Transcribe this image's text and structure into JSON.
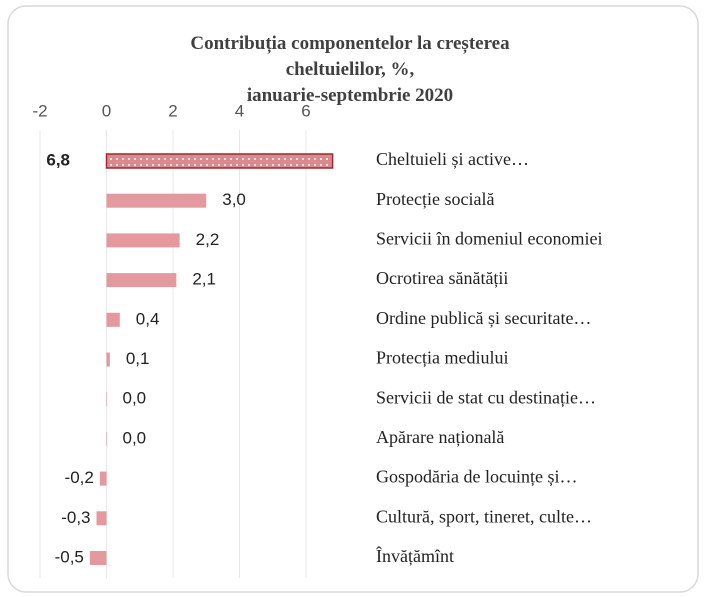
{
  "chart_data": {
    "type": "bar",
    "orientation": "horizontal",
    "title": "Contribuția componentelor la creșterea cheltuielilor, %, ianuarie-septembrie 2020",
    "categories": [
      "Cheltuieli și active…",
      "Protecție socială",
      "Servicii în domeniul economiei",
      "Ocrotirea sănătății",
      "Ordine publică și securitate…",
      "Protecția mediului",
      "Servicii de stat cu destinație…",
      "Apărare națională",
      "Gospodăria de locuințe și…",
      "Cultură, sport, tineret, culte…",
      "Învățămînt"
    ],
    "values": [
      6.8,
      3.0,
      2.2,
      2.1,
      0.4,
      0.1,
      0.0,
      0.0,
      -0.2,
      -0.3,
      -0.5
    ],
    "value_labels": [
      "6,8",
      "3,0",
      "2,2",
      "2,1",
      "0,4",
      "0,1",
      "0,0",
      "0,0",
      "-0,2",
      "-0,3",
      "-0,5"
    ],
    "color": "#e3999e",
    "xlim": [
      -2,
      8
    ],
    "xticks": [
      -2,
      0,
      2,
      4,
      6
    ],
    "grid": true
  }
}
